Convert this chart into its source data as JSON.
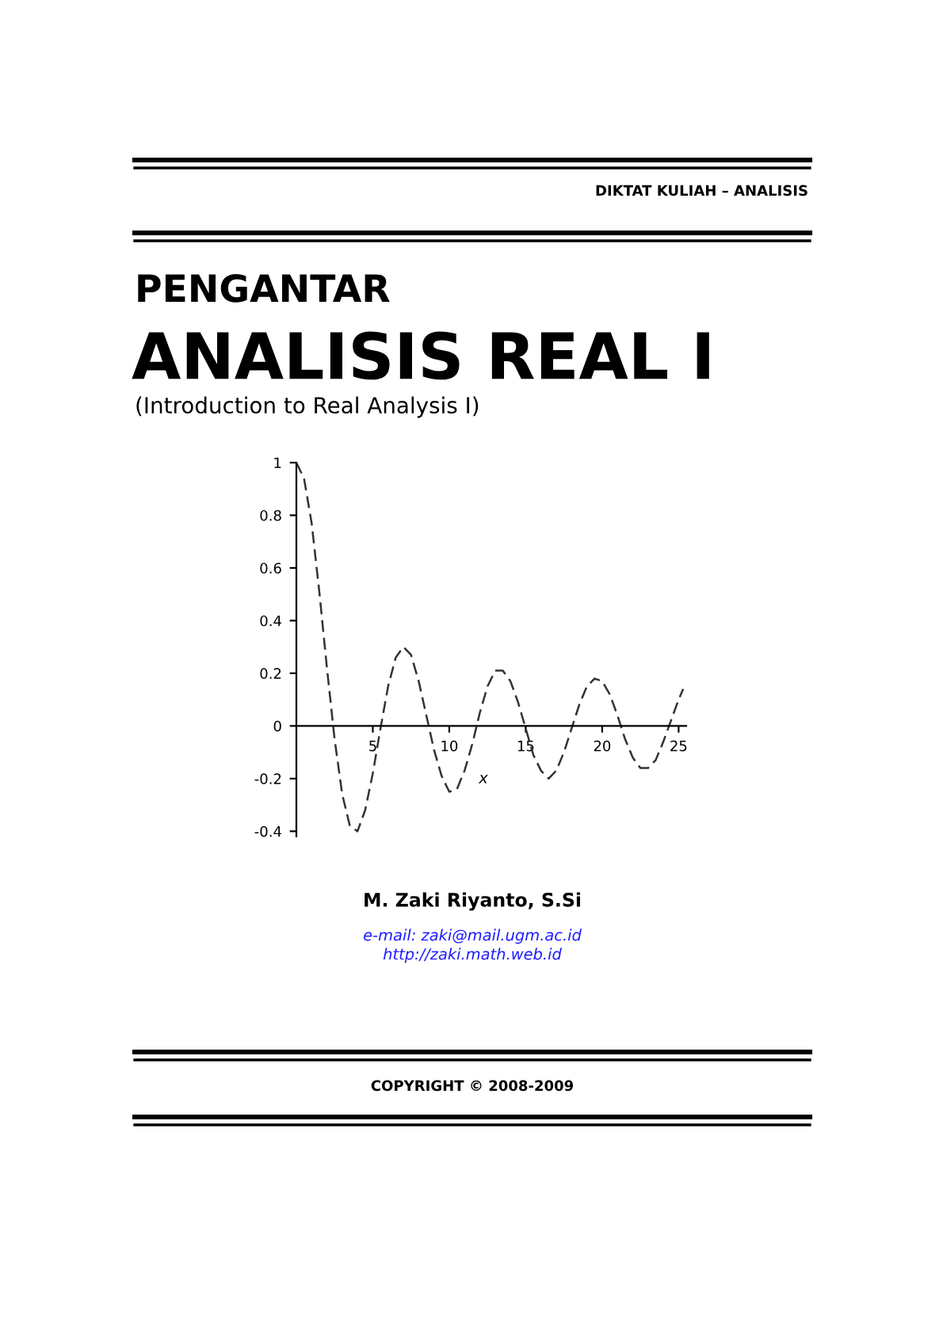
{
  "chart_data": {
    "type": "line",
    "title": "ANALISIS REAL I",
    "subtitle": "(Introduction to Real Analysis I)",
    "xlabel": "x",
    "annotations": [
      "DIKTAT KULIAH – ANALISIS",
      "PENGANTAR",
      "M. Zaki Riyanto, S.Si",
      "e-mail: zaki@mail.ugm.ac.id",
      "http://zaki.math.web.id",
      "COPYRIGHT © 2008-2009"
    ],
    "x": [
      0,
      0.5,
      1,
      1.5,
      2,
      2.5,
      3,
      3.5,
      4,
      4.5,
      5,
      5.5,
      6,
      6.5,
      7,
      7.5,
      8,
      8.5,
      9,
      9.5,
      10,
      10.5,
      11,
      11.5,
      12,
      12.5,
      13,
      13.5,
      14,
      14.5,
      15,
      15.5,
      16,
      16.5,
      17,
      17.5,
      18,
      18.5,
      19,
      19.5,
      20,
      20.5,
      21,
      21.5,
      22,
      22.5,
      23,
      23.5,
      24,
      24.5,
      25,
      25.3
    ],
    "series": [
      {
        "color": "#333333",
        "values": [
          1.0,
          0.94,
          0.77,
          0.51,
          0.22,
          -0.05,
          -0.26,
          -0.38,
          -0.4,
          -0.32,
          -0.18,
          -0.01,
          0.15,
          0.26,
          0.3,
          0.27,
          0.17,
          0.04,
          -0.09,
          -0.19,
          -0.25,
          -0.24,
          -0.17,
          -0.07,
          0.05,
          0.15,
          0.21,
          0.21,
          0.17,
          0.09,
          -0.01,
          -0.11,
          -0.17,
          -0.2,
          -0.17,
          -0.1,
          -0.01,
          0.08,
          0.15,
          0.18,
          0.17,
          0.12,
          0.04,
          -0.05,
          -0.12,
          -0.16,
          -0.16,
          -0.13,
          -0.06,
          0.02,
          0.1,
          0.14
        ]
      }
    ],
    "xlim": [
      0,
      25.5
    ],
    "ylim": [
      -0.42,
      1.0
    ],
    "xticks": [
      5,
      10,
      15,
      20,
      25
    ],
    "yticks": [
      {
        "value": 1,
        "label": "1"
      },
      0.8,
      0.6,
      0.4,
      0.2,
      0,
      -0.2,
      -0.4
    ],
    "line_style": "dashed",
    "marker": "none",
    "grid": false,
    "legend": false
  }
}
